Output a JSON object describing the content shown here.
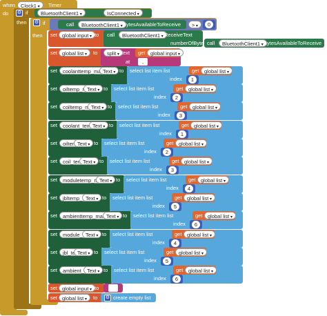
{
  "event": {
    "when": "when",
    "component": "Clock1",
    "event": "Timer",
    "do": "do"
  },
  "if_outer": {
    "if": "if",
    "then": "then",
    "component": "BluetoothClient1",
    "property": "IsConnected"
  },
  "if_inner": {
    "if": "if",
    "then": "then",
    "call": "call",
    "component": "BluetoothClient1",
    "method": "BytesAvailableToReceive",
    "operator": ">",
    "value": "0"
  },
  "set_input": {
    "set": "set",
    "variable": "global input",
    "to": "to",
    "call": "call",
    "component": "BluetoothClient1",
    "method": "ReceiveText",
    "param": "numberOfBytes",
    "call2": "call",
    "component2": "BluetoothClient1",
    "method2": "BytesAvailableToReceive"
  },
  "set_list": {
    "set": "set",
    "variable": "global list",
    "to": "to",
    "op": "split",
    "text_label": "text",
    "get": "get",
    "get_var": "global input",
    "at": "at",
    "at_value": ","
  },
  "words": {
    "set": "set",
    "to": "to",
    "text": "Text",
    "select": "select list item  list",
    "get": "get",
    "index": "index"
  },
  "assignments": [
    {
      "component": "coolanttemp_main",
      "get_var": "global list",
      "index": "1"
    },
    {
      "component": "oiltemp_main",
      "get_var": "global list",
      "index": "2"
    },
    {
      "component": "coiltemp_main",
      "get_var": "global list",
      "index": "3"
    },
    {
      "component": "coolant_temp",
      "get_var": "global list",
      "index": "1"
    },
    {
      "component": "oiltemp",
      "get_var": "global list",
      "index": "2"
    },
    {
      "component": "coil_temp",
      "get_var": "global list",
      "index": "3"
    },
    {
      "component": "moduletemp_main",
      "get_var": "global list",
      "index": "4"
    },
    {
      "component": "jbltemp_main",
      "get_var": "global list",
      "index": "5"
    },
    {
      "component": "ambienttemp_main",
      "get_var": "global list",
      "index": "6"
    },
    {
      "component": "module_temp",
      "get_var": "global list",
      "index": "4"
    },
    {
      "component": "jbl_temp",
      "get_var": "global list",
      "index": "5"
    },
    {
      "component": "ambient_temp",
      "get_var": "global list",
      "index": "6"
    }
  ],
  "reset_input": {
    "set": "set",
    "variable": "global input",
    "to": "to"
  },
  "reset_list": {
    "set": "set",
    "variable": "global list",
    "to": "to",
    "op": "create empty list"
  },
  "colors": {
    "control": "#c79a2a",
    "variable": "#e2662e",
    "component": "#1f5f3a",
    "list": "#55a7dc",
    "text": "#b8397a",
    "math": "#3c5db8",
    "logic": "#6c7ab8"
  }
}
